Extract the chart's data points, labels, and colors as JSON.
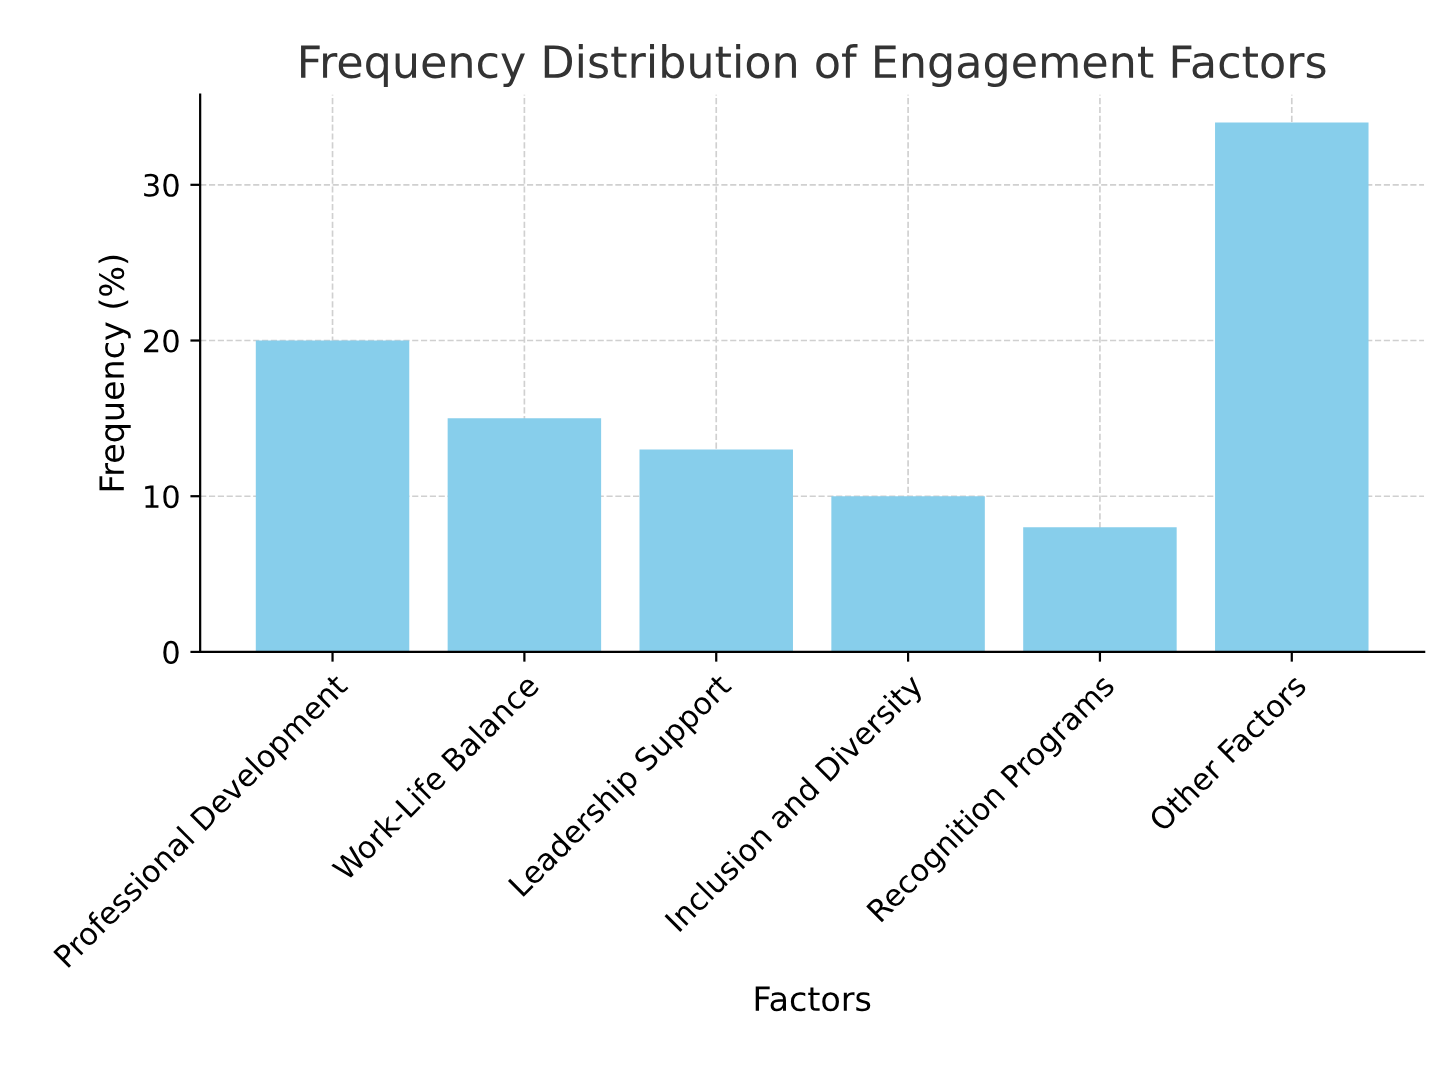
{
  "chart_data": {
    "type": "bar",
    "title": "Frequency Distribution of Engagement Factors",
    "xlabel": "Factors",
    "ylabel": "Frequency (%)",
    "categories": [
      "Professional Development",
      "Work-Life Balance",
      "Leadership Support",
      "Inclusion and Diversity",
      "Recognition Programs",
      "Other Factors"
    ],
    "values": [
      20,
      15,
      13,
      10,
      8,
      34
    ],
    "color": "#87ceeb",
    "ylim": [
      0,
      35.8
    ],
    "yticks": [
      0,
      10,
      20,
      30
    ],
    "grid": true,
    "legend": false
  }
}
